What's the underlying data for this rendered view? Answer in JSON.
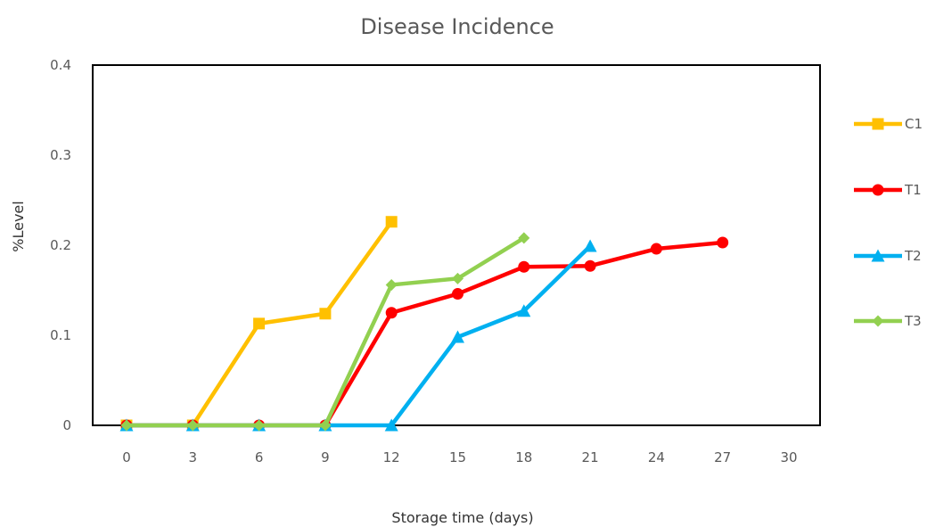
{
  "chart_data": {
    "type": "line",
    "title": "Disease Incidence",
    "xlabel": "Storage time (days)",
    "ylabel": "%Level",
    "x": [
      0,
      3,
      6,
      9,
      12,
      15,
      18,
      21,
      24,
      27,
      30
    ],
    "xlim": [
      0,
      30
    ],
    "ylim": [
      0,
      0.4
    ],
    "yticks": [
      0,
      0.1,
      0.2,
      0.3,
      0.4
    ],
    "ytick_labels": [
      "0",
      "0.1",
      "0.2",
      "0.3",
      "0.4"
    ],
    "grid": false,
    "legend_position": "right",
    "series": [
      {
        "name": "C1",
        "color": "#FFC000",
        "marker": "square",
        "x": [
          0,
          3,
          6,
          9,
          12
        ],
        "values": [
          0,
          0,
          0.113,
          0.124,
          0.226
        ]
      },
      {
        "name": "T1",
        "color": "#FF0000",
        "marker": "circle",
        "x": [
          0,
          3,
          6,
          9,
          12,
          15,
          18,
          21,
          24,
          27
        ],
        "values": [
          0,
          0,
          0,
          0,
          0.125,
          0.146,
          0.176,
          0.177,
          0.196,
          0.203
        ]
      },
      {
        "name": "T2",
        "color": "#00B0F0",
        "marker": "triangle",
        "x": [
          0,
          3,
          6,
          9,
          12,
          15,
          18,
          21
        ],
        "values": [
          0,
          0,
          0,
          0,
          0,
          0.098,
          0.127,
          0.199
        ]
      },
      {
        "name": "T3",
        "color": "#92D050",
        "marker": "diamond",
        "x": [
          0,
          3,
          6,
          9,
          12,
          15,
          18
        ],
        "values": [
          0,
          0,
          0,
          0,
          0.156,
          0.163,
          0.208
        ]
      }
    ]
  }
}
